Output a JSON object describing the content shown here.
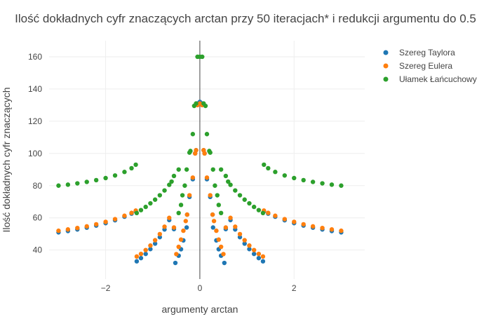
{
  "chart_data": {
    "type": "scatter",
    "title": "Ilość dokładnych cyfr znaczących arctan przy 50 iteracjach* i redukcji argumentu do 0.5",
    "xlabel": "argumenty arctan",
    "ylabel": "Ilość dokładnych cyfr znaczących",
    "xlim": [
      -3.2,
      3.5
    ],
    "ylim": [
      22,
      170
    ],
    "x_ticks": [
      -2,
      0,
      2
    ],
    "x_tick_labels": [
      "−2",
      "0",
      "2"
    ],
    "y_ticks": [
      40,
      60,
      80,
      100,
      120,
      140,
      160
    ],
    "y_tick_labels": [
      "40",
      "60",
      "80",
      "100",
      "120",
      "140",
      "160"
    ],
    "grid": true,
    "legend_position": "top-right",
    "series": [
      {
        "name": "Szereg Taylora",
        "color": "#1f77b4",
        "points": [
          [
            -3.0,
            51
          ],
          [
            -2.8,
            51.8
          ],
          [
            -2.6,
            52.8
          ],
          [
            -2.4,
            53.9
          ],
          [
            -2.2,
            55.2
          ],
          [
            -2.0,
            56.7
          ],
          [
            -1.8,
            58.5
          ],
          [
            -1.6,
            60.7
          ],
          [
            -1.45,
            62.6
          ],
          [
            -1.36,
            64
          ],
          [
            -1.34,
            33
          ],
          [
            -1.25,
            35
          ],
          [
            -1.15,
            37.6
          ],
          [
            -1.05,
            40.6
          ],
          [
            -0.95,
            44
          ],
          [
            -0.85,
            48
          ],
          [
            -0.75,
            52.8
          ],
          [
            -0.65,
            58.6
          ],
          [
            -0.55,
            53
          ],
          [
            -0.52,
            32
          ],
          [
            -0.45,
            36.5
          ],
          [
            -0.4,
            40.5
          ],
          [
            -0.35,
            46
          ],
          [
            -0.28,
            54
          ],
          [
            -0.27,
            62
          ],
          [
            -0.22,
            73
          ],
          [
            -0.15,
            84
          ],
          [
            -0.1,
            100
          ],
          [
            -0.08,
            102
          ],
          [
            -0.05,
            131
          ],
          [
            0.0,
            132
          ],
          [
            0.05,
            131
          ],
          [
            0.08,
            102
          ],
          [
            0.1,
            100
          ],
          [
            0.15,
            84
          ],
          [
            0.22,
            73
          ],
          [
            0.27,
            62
          ],
          [
            0.28,
            54
          ],
          [
            0.35,
            46
          ],
          [
            0.4,
            40.5
          ],
          [
            0.45,
            36.5
          ],
          [
            0.52,
            32
          ],
          [
            0.55,
            53
          ],
          [
            0.65,
            58.6
          ],
          [
            0.75,
            52.8
          ],
          [
            0.85,
            48
          ],
          [
            0.95,
            44
          ],
          [
            1.05,
            40.6
          ],
          [
            1.15,
            37.6
          ],
          [
            1.25,
            35
          ],
          [
            1.34,
            33
          ],
          [
            1.36,
            64
          ],
          [
            1.45,
            62.6
          ],
          [
            1.6,
            60.7
          ],
          [
            1.8,
            58.5
          ],
          [
            2.0,
            56.7
          ],
          [
            2.2,
            55.2
          ],
          [
            2.4,
            53.9
          ],
          [
            2.6,
            52.8
          ],
          [
            2.8,
            51.8
          ],
          [
            3.0,
            51
          ]
        ]
      },
      {
        "name": "Szereg Eulera",
        "color": "#ff7f0e",
        "points": [
          [
            -3.0,
            52
          ],
          [
            -2.8,
            52.8
          ],
          [
            -2.6,
            53.7
          ],
          [
            -2.4,
            54.7
          ],
          [
            -2.2,
            56
          ],
          [
            -2.0,
            57.5
          ],
          [
            -1.8,
            59.2
          ],
          [
            -1.6,
            61.3
          ],
          [
            -1.45,
            63.1
          ],
          [
            -1.36,
            64.5
          ],
          [
            -1.34,
            36
          ],
          [
            -1.25,
            37.6
          ],
          [
            -1.15,
            40
          ],
          [
            -1.05,
            42.8
          ],
          [
            -0.95,
            46.1
          ],
          [
            -0.85,
            49.9
          ],
          [
            -0.75,
            54.5
          ],
          [
            -0.65,
            60
          ],
          [
            -0.55,
            54
          ],
          [
            -0.5,
            37.5
          ],
          [
            -0.45,
            42
          ],
          [
            -0.4,
            46.5
          ],
          [
            -0.35,
            52
          ],
          [
            -0.3,
            58
          ],
          [
            -0.27,
            62
          ],
          [
            -0.22,
            74
          ],
          [
            -0.15,
            85
          ],
          [
            -0.1,
            100
          ],
          [
            -0.08,
            102
          ],
          [
            -0.05,
            130
          ],
          [
            0.0,
            131
          ],
          [
            0.05,
            130
          ],
          [
            0.08,
            102
          ],
          [
            0.1,
            100
          ],
          [
            0.15,
            85
          ],
          [
            0.22,
            74
          ],
          [
            0.27,
            62
          ],
          [
            0.3,
            58
          ],
          [
            0.35,
            52
          ],
          [
            0.4,
            46.5
          ],
          [
            0.45,
            42
          ],
          [
            0.5,
            37.5
          ],
          [
            0.55,
            54
          ],
          [
            0.65,
            60
          ],
          [
            0.75,
            54.5
          ],
          [
            0.85,
            49.9
          ],
          [
            0.95,
            46.1
          ],
          [
            1.05,
            42.8
          ],
          [
            1.15,
            40
          ],
          [
            1.25,
            37.6
          ],
          [
            1.34,
            36
          ],
          [
            1.36,
            64.5
          ],
          [
            1.45,
            63.1
          ],
          [
            1.6,
            61.3
          ],
          [
            1.8,
            59.2
          ],
          [
            2.0,
            57.5
          ],
          [
            2.2,
            56
          ],
          [
            2.4,
            54.7
          ],
          [
            2.6,
            53.7
          ],
          [
            2.8,
            52.8
          ],
          [
            3.0,
            52
          ]
        ]
      },
      {
        "name": "Ułamek Łańcuchowy",
        "color": "#2ca02c",
        "points": [
          [
            -3.0,
            80
          ],
          [
            -2.8,
            80.6
          ],
          [
            -2.6,
            81.4
          ],
          [
            -2.4,
            82.3
          ],
          [
            -2.2,
            83.4
          ],
          [
            -2.0,
            84.7
          ],
          [
            -1.8,
            86.3
          ],
          [
            -1.6,
            88.5
          ],
          [
            -1.45,
            90.8
          ],
          [
            -1.36,
            93
          ],
          [
            -1.34,
            63
          ],
          [
            -1.25,
            64.8
          ],
          [
            -1.15,
            66.8
          ],
          [
            -1.05,
            69
          ],
          [
            -0.95,
            71.3
          ],
          [
            -0.85,
            74
          ],
          [
            -0.75,
            77
          ],
          [
            -0.65,
            80.5
          ],
          [
            -0.6,
            82.5
          ],
          [
            -0.55,
            86
          ],
          [
            -0.45,
            90
          ],
          [
            -0.45,
            63
          ],
          [
            -0.4,
            68
          ],
          [
            -0.37,
            74
          ],
          [
            -0.32,
            80
          ],
          [
            -0.28,
            90
          ],
          [
            -0.22,
            100.5
          ],
          [
            -0.2,
            101.5
          ],
          [
            -0.15,
            112
          ],
          [
            -0.12,
            129.5
          ],
          [
            -0.08,
            131
          ],
          [
            -0.05,
            160
          ],
          [
            0.0,
            160
          ],
          [
            0.05,
            160
          ],
          [
            0.08,
            131
          ],
          [
            0.12,
            129.5
          ],
          [
            0.15,
            112
          ],
          [
            0.2,
            101.5
          ],
          [
            0.22,
            100.5
          ],
          [
            0.28,
            90
          ],
          [
            0.32,
            80
          ],
          [
            0.37,
            74
          ],
          [
            0.4,
            68
          ],
          [
            0.45,
            63
          ],
          [
            0.45,
            90
          ],
          [
            0.55,
            86
          ],
          [
            0.6,
            82.5
          ],
          [
            0.65,
            80.5
          ],
          [
            0.75,
            77
          ],
          [
            0.85,
            74
          ],
          [
            0.95,
            71.3
          ],
          [
            1.05,
            69
          ],
          [
            1.15,
            66.8
          ],
          [
            1.25,
            64.8
          ],
          [
            1.34,
            63
          ],
          [
            1.36,
            93
          ],
          [
            1.45,
            90.8
          ],
          [
            1.6,
            88.5
          ],
          [
            1.8,
            86.3
          ],
          [
            2.0,
            84.7
          ],
          [
            2.2,
            83.4
          ],
          [
            2.4,
            82.3
          ],
          [
            2.6,
            81.4
          ],
          [
            2.8,
            80.6
          ],
          [
            3.0,
            80
          ]
        ]
      }
    ]
  }
}
